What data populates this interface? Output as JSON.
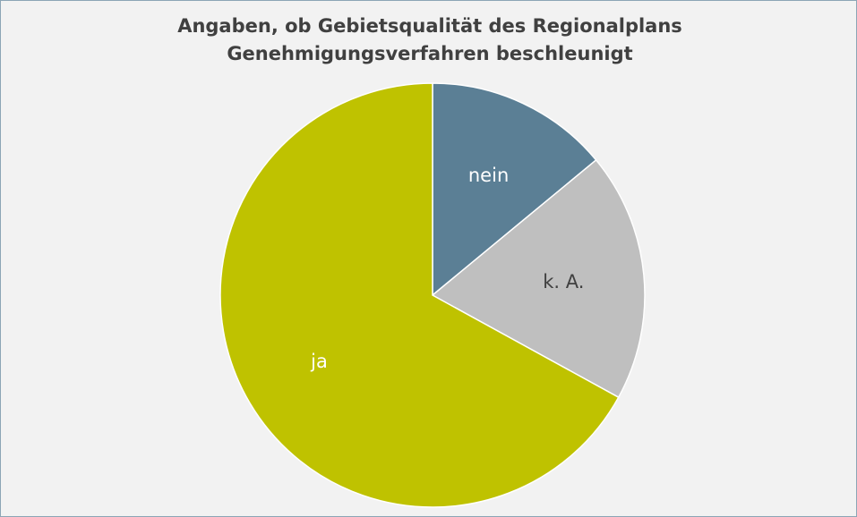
{
  "chart_data": {
    "type": "pie",
    "title": "Angaben, ob Gebietsqualität des Regionalplans Genehmigungsverfahren beschleunigt",
    "categories": [
      "nein",
      "k. A.",
      "ja"
    ],
    "values": [
      14,
      19,
      67
    ],
    "colors": [
      "#5b7f95",
      "#bfbfbf",
      "#bfc200"
    ],
    "label_colors": [
      "#ffffff",
      "#404040",
      "#ffffff"
    ]
  }
}
